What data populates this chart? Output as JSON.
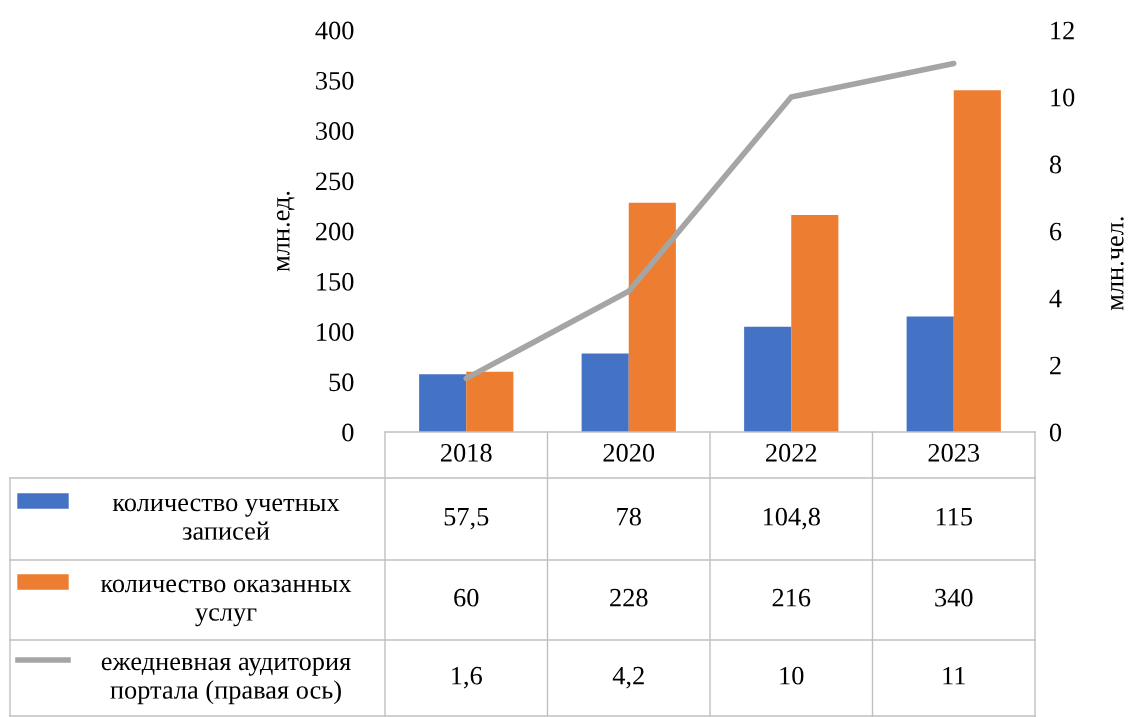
{
  "chart_data": {
    "type": "bar",
    "categories": [
      "2018",
      "2020",
      "2022",
      "2023"
    ],
    "ylabel": "млн.ед.",
    "y2label": "млн.чел.",
    "ylim": [
      0,
      400
    ],
    "yticks": [
      0,
      50,
      100,
      150,
      200,
      250,
      300,
      350,
      400
    ],
    "y2lim": [
      0,
      12
    ],
    "y2ticks": [
      0,
      2,
      4,
      6,
      8,
      10,
      12
    ],
    "legend": "bottom",
    "grid": false,
    "series": [
      {
        "name": "количество учетных записей",
        "color": "#4472c4",
        "values": [
          57.5,
          78,
          104.8,
          115
        ],
        "value_labels": [
          "57,5",
          "78",
          "104,8",
          "115"
        ]
      },
      {
        "name": "количество оказанных услуг",
        "color": "#ed7d31",
        "values": [
          60,
          228,
          216,
          340
        ],
        "value_labels": [
          "60",
          "228",
          "216",
          "340"
        ]
      },
      {
        "name": "ежедневная аудитория портала (правая ось)",
        "type": "line",
        "axis": "y2",
        "color": "#a5a5a5",
        "line_style": "solid",
        "marker": "none",
        "values": [
          1.6,
          4.2,
          10,
          11
        ],
        "value_labels": [
          "1,6",
          "4,2",
          "10",
          "11"
        ]
      }
    ]
  }
}
